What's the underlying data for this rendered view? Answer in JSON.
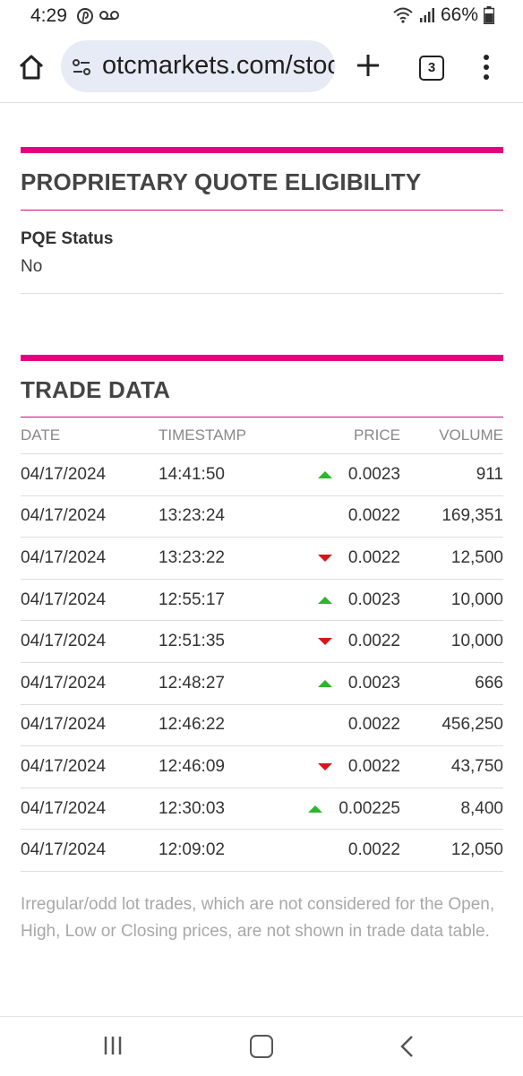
{
  "status_bar": {
    "time": "4:29",
    "battery": "66%",
    "icons": [
      "pinterest-icon",
      "voicemail-icon",
      "wifi-icon",
      "signal-icon",
      "battery-icon"
    ]
  },
  "browser": {
    "url": "otcmarkets.com/stock",
    "tab_count": "3",
    "icons": [
      "home-icon",
      "site-settings-icon",
      "new-tab-icon",
      "tab-switcher-icon",
      "more-menu-icon"
    ]
  },
  "pqe": {
    "title": "PROPRIETARY QUOTE ELIGIBILITY",
    "status_label": "PQE Status",
    "status_value": "No"
  },
  "trade": {
    "title": "TRADE DATA",
    "headers": {
      "date": "DATE",
      "timestamp": "TIMESTAMP",
      "price": "PRICE",
      "volume": "VOLUME"
    },
    "rows": [
      {
        "date": "04/17/2024",
        "timestamp": "14:41:50",
        "direction": "up",
        "price": "0.0023",
        "volume": "911"
      },
      {
        "date": "04/17/2024",
        "timestamp": "13:23:24",
        "direction": "none",
        "price": "0.0022",
        "volume": "169,351"
      },
      {
        "date": "04/17/2024",
        "timestamp": "13:23:22",
        "direction": "down",
        "price": "0.0022",
        "volume": "12,500"
      },
      {
        "date": "04/17/2024",
        "timestamp": "12:55:17",
        "direction": "up",
        "price": "0.0023",
        "volume": "10,000"
      },
      {
        "date": "04/17/2024",
        "timestamp": "12:51:35",
        "direction": "down",
        "price": "0.0022",
        "volume": "10,000"
      },
      {
        "date": "04/17/2024",
        "timestamp": "12:48:27",
        "direction": "up",
        "price": "0.0023",
        "volume": "666"
      },
      {
        "date": "04/17/2024",
        "timestamp": "12:46:22",
        "direction": "none",
        "price": "0.0022",
        "volume": "456,250"
      },
      {
        "date": "04/17/2024",
        "timestamp": "12:46:09",
        "direction": "down",
        "price": "0.0022",
        "volume": "43,750"
      },
      {
        "date": "04/17/2024",
        "timestamp": "12:30:03",
        "direction": "up",
        "price": "0.00225",
        "volume": "8,400"
      },
      {
        "date": "04/17/2024",
        "timestamp": "12:09:02",
        "direction": "none",
        "price": "0.0022",
        "volume": "12,050"
      }
    ],
    "note": "Irregular/odd lot trades, which are not considered for the Open, High, Low or Closing prices, are not shown in trade data table."
  },
  "colors": {
    "accent": "#e6007e",
    "up": "#2db52d",
    "down": "#d9151b"
  }
}
